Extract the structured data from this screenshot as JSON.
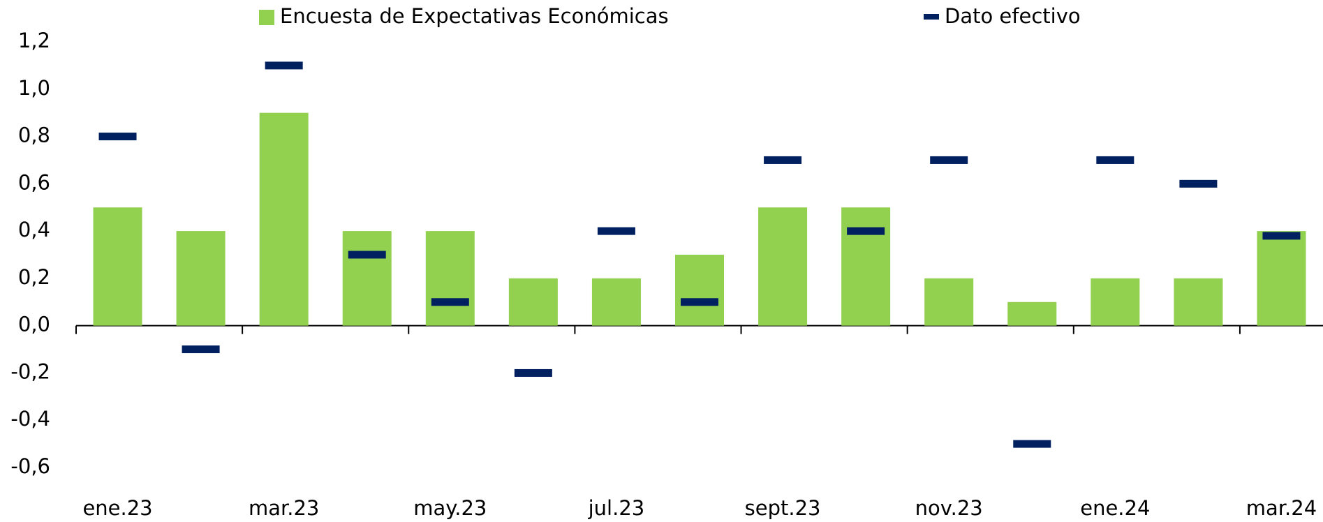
{
  "chart_data": {
    "type": "bar",
    "categories": [
      "ene.23",
      null,
      "mar.23",
      null,
      "may.23",
      null,
      "jul.23",
      null,
      "sept.23",
      null,
      "nov.23",
      null,
      "ene.24",
      null,
      "mar.24"
    ],
    "series": [
      {
        "name": "Encuesta de Expectativas Económicas",
        "type": "bar",
        "color": "#92d050",
        "values": [
          0.5,
          0.4,
          0.9,
          0.4,
          0.4,
          0.2,
          0.2,
          0.3,
          0.5,
          0.5,
          0.2,
          0.1,
          0.2,
          0.2,
          0.4
        ]
      },
      {
        "name": "Dato efectivo",
        "type": "marker",
        "color": "#002060",
        "values": [
          0.8,
          -0.1,
          1.1,
          0.3,
          0.1,
          -0.2,
          0.4,
          0.1,
          0.7,
          0.4,
          0.7,
          -0.5,
          0.7,
          0.6,
          0.38
        ]
      }
    ],
    "ylim": [
      -0.6,
      1.2
    ],
    "yticks": [
      {
        "value": -0.6,
        "label": "-0,6"
      },
      {
        "value": -0.4,
        "label": "-0,4"
      },
      {
        "value": -0.2,
        "label": "-0,2"
      },
      {
        "value": 0,
        "label": "0,0"
      },
      {
        "value": 0.2,
        "label": "0,2"
      },
      {
        "value": 0.4,
        "label": "0,4"
      },
      {
        "value": 0.6,
        "label": "0,6"
      },
      {
        "value": 0.8,
        "label": "0,8"
      },
      {
        "value": 1,
        "label": "1,0"
      },
      {
        "value": 1.2,
        "label": "1,2"
      }
    ],
    "grid": false
  }
}
